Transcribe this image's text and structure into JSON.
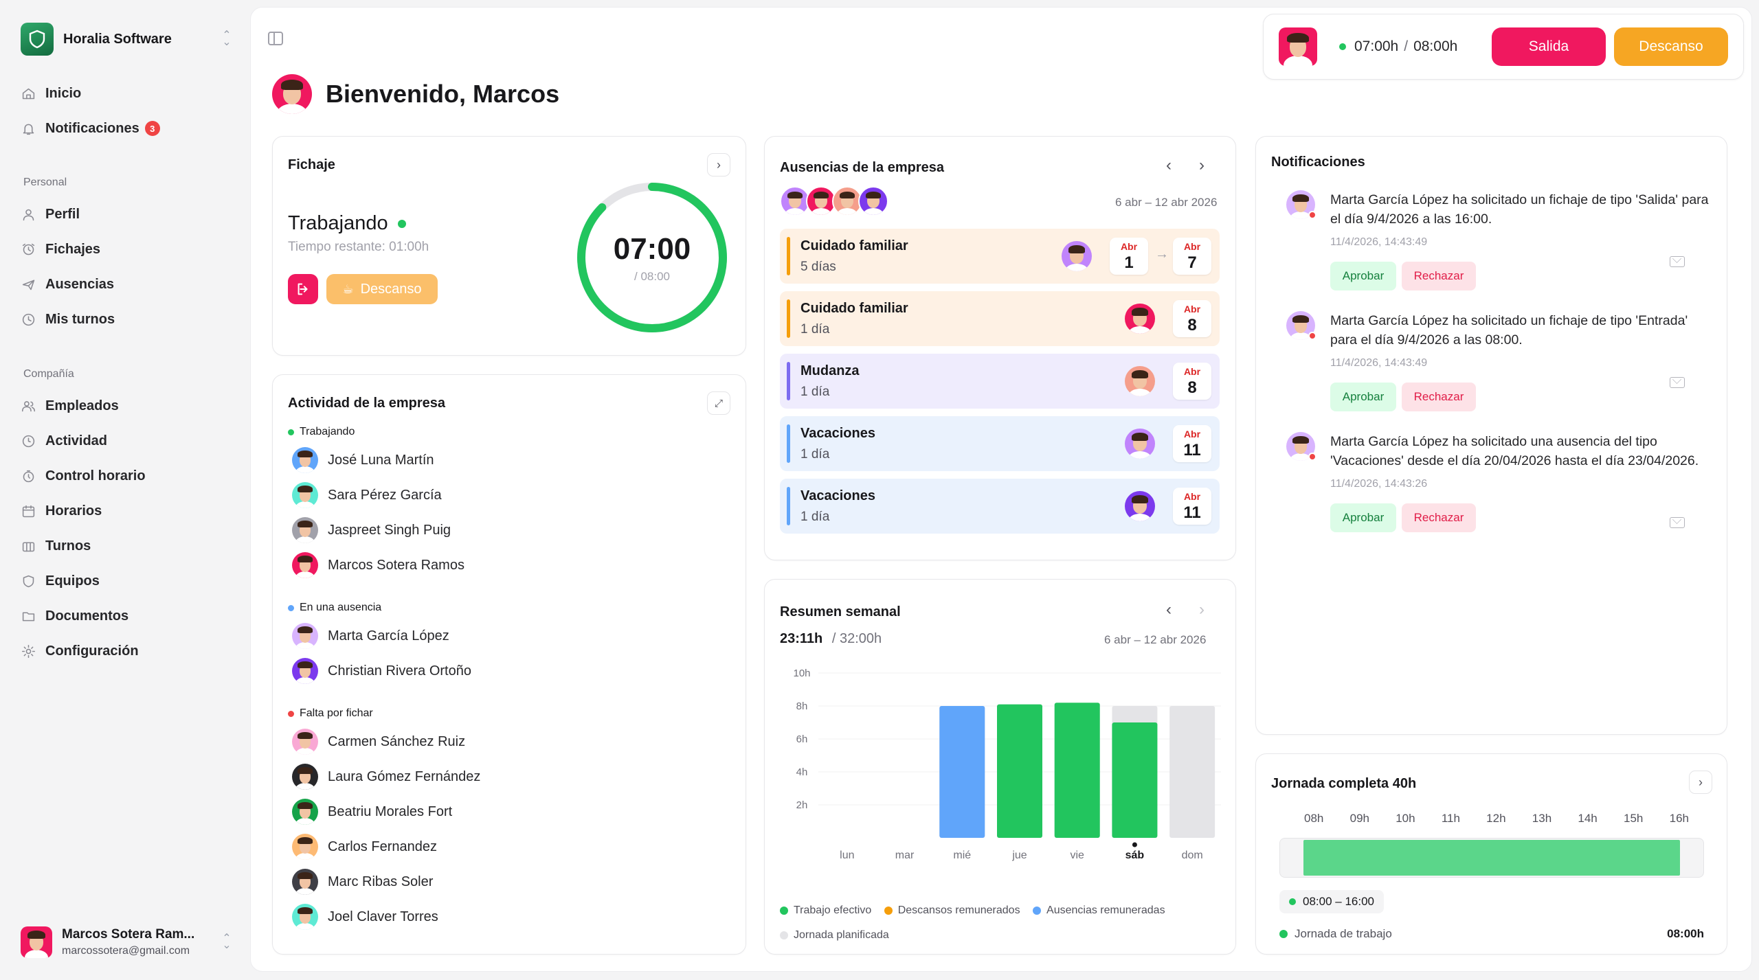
{
  "colors": {
    "accent_pink": "#f0185f",
    "accent_orange": "#f6a623",
    "green": "#22c55e",
    "blue": "#60a5fa",
    "red": "#ef4444",
    "grey": "#e4e4e7"
  },
  "sidebar": {
    "company": "Horalia Software",
    "items": [
      {
        "label": "Inicio",
        "icon": "home-icon"
      },
      {
        "label": "Notificaciones",
        "icon": "bell-icon",
        "badge": "3"
      }
    ],
    "personal_title": "Personal",
    "personal": [
      {
        "label": "Perfil",
        "icon": "user-icon"
      },
      {
        "label": "Fichajes",
        "icon": "clock-in-icon"
      },
      {
        "label": "Ausencias",
        "icon": "plane-icon"
      },
      {
        "label": "Mis turnos",
        "icon": "clock-icon"
      }
    ],
    "company_title": "Compañía",
    "company_items": [
      {
        "label": "Empleados",
        "icon": "users-icon"
      },
      {
        "label": "Actividad",
        "icon": "activity-icon"
      },
      {
        "label": "Control horario",
        "icon": "stopwatch-icon"
      },
      {
        "label": "Horarios",
        "icon": "calendar-icon"
      },
      {
        "label": "Turnos",
        "icon": "shifts-icon"
      },
      {
        "label": "Equipos",
        "icon": "shield-icon"
      },
      {
        "label": "Documentos",
        "icon": "folder-icon"
      },
      {
        "label": "Configuración",
        "icon": "gear-icon"
      }
    ],
    "user": {
      "name": "Marcos Sotera Ram...",
      "email": "marcossotera@gmail.com"
    }
  },
  "header": {
    "welcome": "Bienvenido, Marcos",
    "time_worked": "07:00h",
    "time_sep": "/",
    "time_total": "08:00h",
    "salida_label": "Salida",
    "descanso_label": "Descanso"
  },
  "fichaje": {
    "title": "Fichaje",
    "status": "Trabajando",
    "remaining": "Tiempo restante: 01:00h",
    "break_label": "Descanso",
    "ring_value": "07:00",
    "ring_total": "/ 08:00",
    "progress": 0.875
  },
  "actividad": {
    "title": "Actividad de la empresa",
    "groups": [
      {
        "label": "Trabajando",
        "color": "#22c55e",
        "people": [
          "José Luna Martín",
          "Sara Pérez García",
          "Jaspreet Singh Puig",
          "Marcos Sotera Ramos"
        ]
      },
      {
        "label": "En una ausencia",
        "color": "#60a5fa",
        "people": [
          "Marta García López",
          "Christian Rivera Ortoño"
        ]
      },
      {
        "label": "Falta por fichar",
        "color": "#ef4444",
        "people": [
          "Carmen Sánchez Ruiz",
          "Laura Gómez Fernández",
          "Beatriu Morales Fort",
          "Carlos Fernandez",
          "Marc Ribas Soler",
          "Joel Claver Torres"
        ]
      }
    ]
  },
  "ausencias": {
    "title": "Ausencias de la empresa",
    "range": "6 abr – 12 abr 2026",
    "rows": [
      {
        "type": "Cuidado familiar",
        "days": "5 días",
        "start_month": "Abr",
        "start_day": "1",
        "end_month": "Abr",
        "end_day": "7",
        "tone": "orange"
      },
      {
        "type": "Cuidado familiar",
        "days": "1 día",
        "start_month": "Abr",
        "start_day": "8",
        "tone": "orange"
      },
      {
        "type": "Mudanza",
        "days": "1 día",
        "start_month": "Abr",
        "start_day": "8",
        "tone": "purple"
      },
      {
        "type": "Vacaciones",
        "days": "1 día",
        "start_month": "Abr",
        "start_day": "11",
        "tone": "blue"
      },
      {
        "type": "Vacaciones",
        "days": "1 día",
        "start_month": "Abr",
        "start_day": "11",
        "tone": "blue"
      }
    ]
  },
  "resumen": {
    "title": "Resumen semanal",
    "total": "23:11h",
    "planned": "/ 32:00h",
    "range": "6 abr – 12 abr 2026",
    "legend": [
      "Trabajo efectivo",
      "Descansos remunerados",
      "Ausencias remuneradas",
      "Jornada planificada"
    ]
  },
  "chart_data": {
    "type": "bar",
    "categories": [
      "lun",
      "mar",
      "mié",
      "jue",
      "vie",
      "sáb",
      "dom"
    ],
    "y_ticks": [
      "10h",
      "8h",
      "6h",
      "4h",
      "2h"
    ],
    "ylim": [
      0,
      10
    ],
    "series": [
      {
        "name": "Trabajo efectivo",
        "values": [
          0,
          0,
          0,
          8.1,
          8.2,
          7.0,
          0
        ]
      },
      {
        "name": "Descansos remunerados",
        "values": [
          0,
          0,
          0,
          0,
          0,
          0,
          0
        ]
      },
      {
        "name": "Ausencias remuneradas",
        "values": [
          0,
          0,
          8.0,
          0,
          0,
          0,
          0
        ]
      },
      {
        "name": "Jornada planificada",
        "values": [
          0,
          0,
          8,
          8,
          8,
          8,
          8
        ]
      }
    ],
    "highlight": "sáb"
  },
  "notificaciones": {
    "title": "Notificaciones",
    "items": [
      {
        "text": "Marta García López ha solicitado un fichaje de tipo 'Salida' para el día 9/4/2026 a las 16:00.",
        "time": "11/4/2026, 14:43:49"
      },
      {
        "text": "Marta García López ha solicitado un fichaje de tipo 'Entrada' para el día 9/4/2026 a las 08:00.",
        "time": "11/4/2026, 14:43:49"
      },
      {
        "text": "Marta García López ha solicitado una ausencia del tipo 'Vacaciones' desde el día 20/04/2026 hasta el día 23/04/2026.",
        "time": "11/4/2026, 14:43:26"
      }
    ],
    "approve": "Aprobar",
    "reject": "Rechazar"
  },
  "jornada": {
    "title": "Jornada completa 40h",
    "hours": [
      "08h",
      "09h",
      "10h",
      "11h",
      "12h",
      "13h",
      "14h",
      "15h",
      "16h"
    ],
    "range": "08:00 – 16:00",
    "label": "Jornada de trabajo",
    "total": "08:00h"
  }
}
